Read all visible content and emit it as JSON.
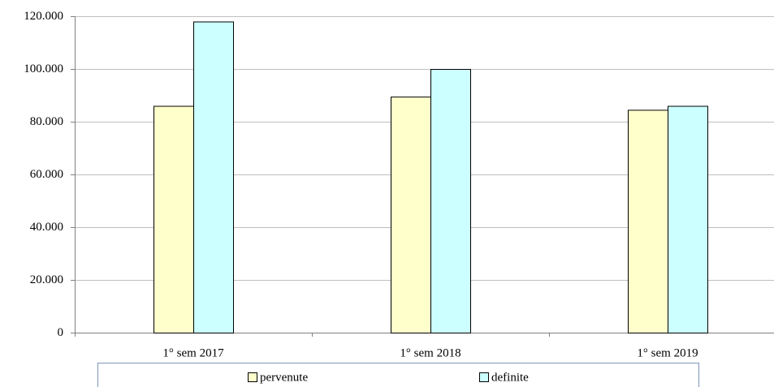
{
  "chart_data": {
    "type": "bar",
    "categories": [
      "1° sem 2017",
      "1° sem 2018",
      "1° sem 2019"
    ],
    "series": [
      {
        "name": "pervenute",
        "color": "#ffffcc",
        "values": [
          86000,
          89500,
          84500
        ]
      },
      {
        "name": "definite",
        "color": "#ccffff",
        "values": [
          118000,
          100000,
          86000
        ]
      }
    ],
    "ylim": [
      0,
      120000
    ],
    "yticks": [
      0,
      {
        "value": 20000,
        "label": "20.000"
      },
      {
        "value": 40000,
        "label": "40.000"
      },
      {
        "value": 60000,
        "label": "60.000"
      },
      {
        "value": 80000,
        "label": "80.000"
      },
      {
        "value": 100000,
        "label": "100.000"
      },
      {
        "value": 120000,
        "label": "120.000"
      }
    ],
    "grid": true
  }
}
